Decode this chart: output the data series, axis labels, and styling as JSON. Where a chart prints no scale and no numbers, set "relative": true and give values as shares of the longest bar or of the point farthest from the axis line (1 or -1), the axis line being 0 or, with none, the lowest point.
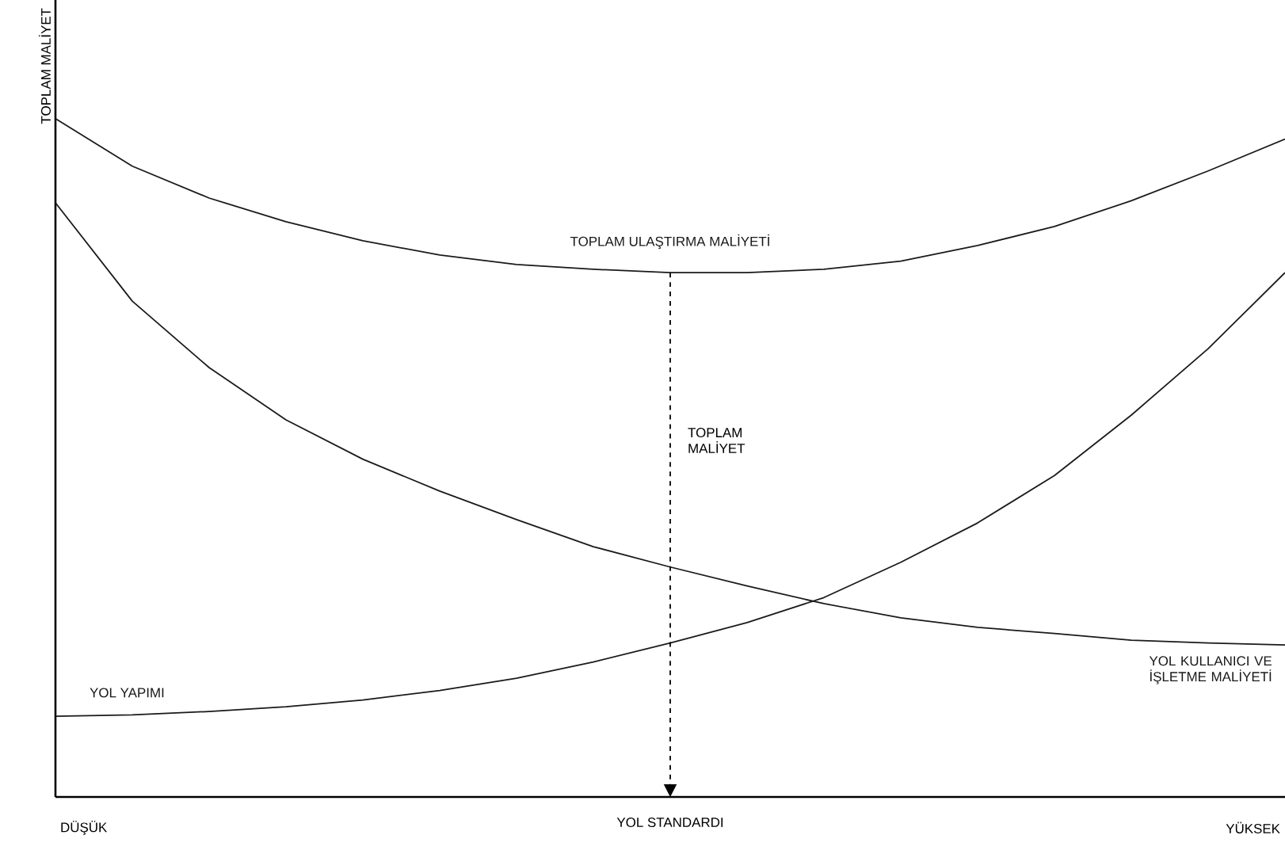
{
  "chart_data": {
    "type": "line",
    "relative": true,
    "xlabel": "YOL STANDARDI",
    "ylabel": "TOPLAM MALİYET",
    "categories": [
      null,
      null,
      null,
      null,
      null,
      null,
      null,
      null,
      null,
      null,
      null,
      null,
      null,
      null,
      null,
      null,
      null
    ],
    "series": [
      {
        "name": "TOPLAM ULAŞTIRMA MALİYETİ",
        "color": "#1a1a1a",
        "values": [
          1.0,
          0.93,
          0.883,
          0.848,
          0.82,
          0.799,
          0.785,
          0.778,
          0.773,
          0.773,
          0.778,
          0.79,
          0.813,
          0.841,
          0.879,
          0.923,
          0.97
        ]
      },
      {
        "name": "YOL KULLANICI VE İŞLETME MALİYETİ",
        "color": "#1a1a1a",
        "values": [
          0.876,
          0.731,
          0.633,
          0.556,
          0.498,
          0.451,
          0.409,
          0.369,
          0.339,
          0.311,
          0.285,
          0.264,
          0.25,
          0.241,
          0.231,
          0.227,
          0.224
        ]
      },
      {
        "name": "YOL YAPIMI",
        "color": "#1a1a1a",
        "values": [
          0.119,
          0.121,
          0.126,
          0.133,
          0.143,
          0.157,
          0.175,
          0.199,
          0.227,
          0.257,
          0.294,
          0.346,
          0.404,
          0.474,
          0.563,
          0.661,
          0.773
        ]
      }
    ],
    "annotations": [
      "TOPLAM MALİYET",
      "DÜŞÜK",
      "YÜKSEK"
    ],
    "legend": false,
    "line_style": "solid",
    "marker": "none"
  }
}
